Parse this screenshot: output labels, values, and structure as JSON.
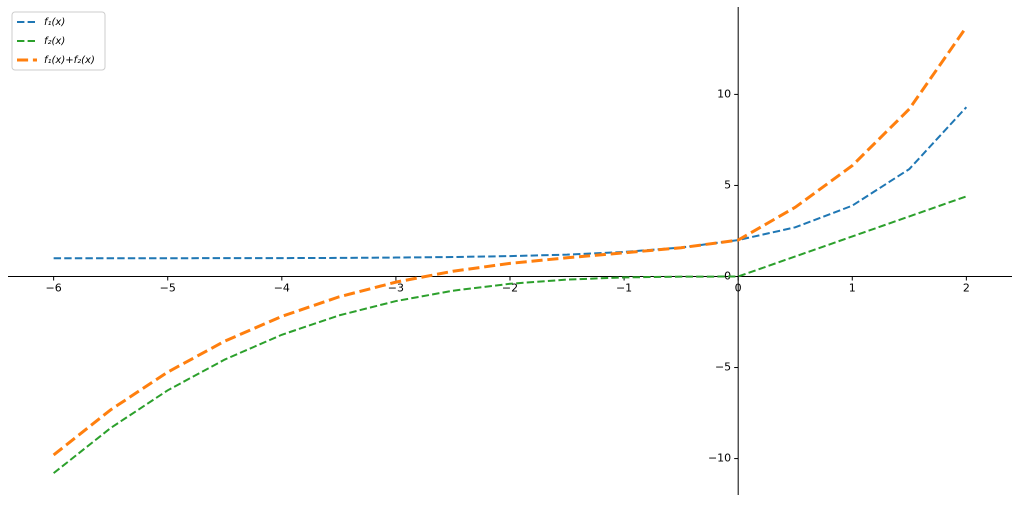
{
  "chart_data": {
    "type": "line",
    "x": [
      -6,
      -5.5,
      -5,
      -4.5,
      -4,
      -3.5,
      -3,
      -2.5,
      -2,
      -1.5,
      -1,
      -0.5,
      0,
      0.5,
      1,
      1.5,
      2
    ],
    "series": [
      {
        "name": "f₁(x)",
        "color": "#1f77b4",
        "width": 2,
        "values": [
          1.0,
          1.0,
          1.0,
          1.01,
          1.01,
          1.02,
          1.04,
          1.07,
          1.12,
          1.2,
          1.35,
          1.59,
          2.0,
          2.7,
          3.89,
          5.9,
          9.3
        ]
      },
      {
        "name": "f₂(x)",
        "color": "#2ca02c",
        "width": 2,
        "values": [
          -10.8,
          -8.32,
          -6.25,
          -4.56,
          -3.2,
          -2.14,
          -1.35,
          -0.78,
          -0.4,
          -0.17,
          -0.05,
          -0.01,
          0,
          1.1,
          2.2,
          3.3,
          4.4
        ]
      },
      {
        "name": "f₁(x)+f₂(x)",
        "color": "#ff7f0e",
        "width": 3,
        "values": [
          -9.8,
          -7.32,
          -5.25,
          -3.55,
          -2.19,
          -1.12,
          -0.31,
          0.29,
          0.72,
          1.03,
          1.3,
          1.58,
          2.0,
          3.8,
          6.09,
          9.2,
          13.7
        ]
      }
    ],
    "xlim": [
      -6.4,
      2.4
    ],
    "ylim": [
      -12,
      14.8
    ],
    "xticks": [
      {
        "value": -6,
        "label": "−6"
      },
      {
        "value": -5,
        "label": "−5"
      },
      {
        "value": -4,
        "label": "−4"
      },
      {
        "value": -3,
        "label": "−3"
      },
      {
        "value": -2,
        "label": "−2"
      },
      {
        "value": -1,
        "label": "−1"
      },
      0,
      1,
      2
    ],
    "yticks": [
      {
        "value": -10,
        "label": "−10"
      },
      {
        "value": -5,
        "label": "−5"
      },
      0,
      5,
      10
    ],
    "legend": "upper left",
    "linestyle": "dashed"
  }
}
